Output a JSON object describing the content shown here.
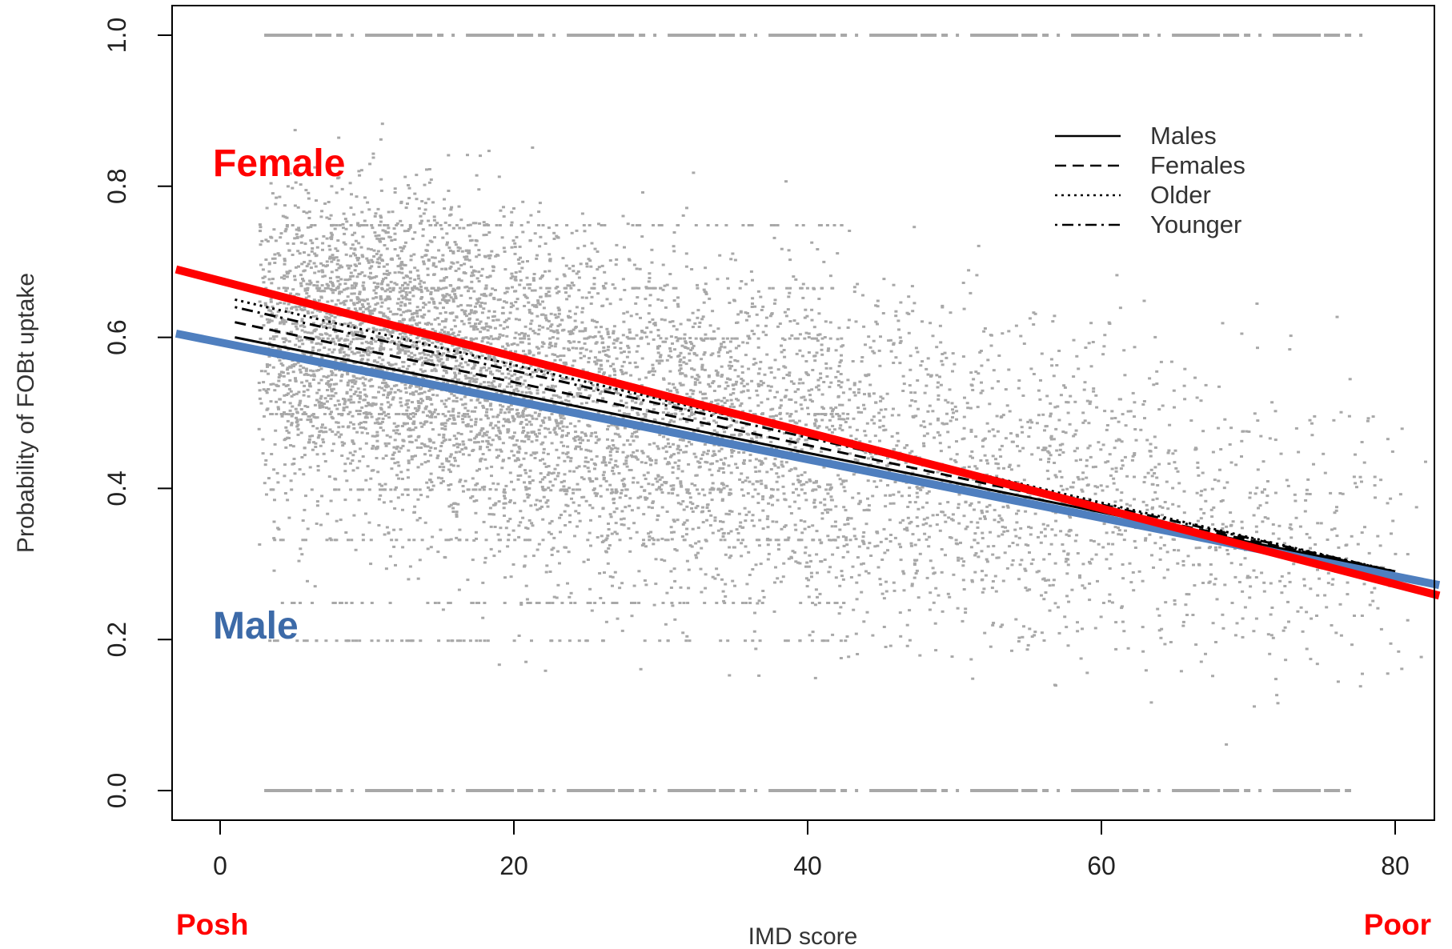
{
  "chart_data": {
    "type": "scatter",
    "xlabel": "IMD score",
    "ylabel": "Probability of FOBt uptake",
    "xlim": [
      -3,
      83
    ],
    "ylim": [
      -0.04,
      1.04
    ],
    "x_ticks": [
      0,
      20,
      40,
      60,
      80
    ],
    "y_ticks": [
      0.0,
      0.2,
      0.4,
      0.6,
      0.8,
      1.0
    ],
    "x_tick_labels": [
      "0",
      "20",
      "40",
      "60",
      "80"
    ],
    "y_tick_labels": [
      "0.0",
      "0.2",
      "0.4",
      "0.6",
      "0.8",
      "1.0"
    ],
    "grid": false,
    "legend_position": "top-right",
    "legend": [
      {
        "label": "Males",
        "style": "solid"
      },
      {
        "label": "Females",
        "style": "dashed"
      },
      {
        "label": "Older",
        "style": "dotted"
      },
      {
        "label": "Younger",
        "style": "dotdash"
      }
    ],
    "scatter_color": "#a8a8a8",
    "scatter_clusters": [
      {
        "x_center": 10,
        "x_spread": 7,
        "y_center": 0.62,
        "y_spread": 0.09,
        "count": 2400
      },
      {
        "x_center": 22,
        "x_spread": 10,
        "y_center": 0.52,
        "y_spread": 0.1,
        "count": 2200
      },
      {
        "x_center": 40,
        "x_spread": 12,
        "y_center": 0.45,
        "y_spread": 0.11,
        "count": 1800
      },
      {
        "x_center": 60,
        "x_spread": 10,
        "y_center": 0.37,
        "y_spread": 0.1,
        "count": 700
      },
      {
        "x_center": 74,
        "x_spread": 5,
        "y_center": 0.32,
        "y_spread": 0.1,
        "count": 160
      }
    ],
    "scatter_bands": [
      {
        "y": 1.0,
        "x_range": [
          3,
          78
        ]
      },
      {
        "y": 0.0,
        "x_range": [
          3,
          77
        ]
      }
    ],
    "fit_lines": [
      {
        "name": "Males",
        "style": "solid",
        "x": [
          1,
          80
        ],
        "y": [
          0.6,
          0.29
        ]
      },
      {
        "name": "Females",
        "style": "dashed",
        "x": [
          1,
          80
        ],
        "y": [
          0.62,
          0.29
        ]
      },
      {
        "name": "Older",
        "style": "dotted",
        "x": [
          1,
          80
        ],
        "y": [
          0.65,
          0.29
        ]
      },
      {
        "name": "Younger",
        "style": "dotdash",
        "x": [
          1,
          80
        ],
        "y": [
          0.64,
          0.29
        ]
      }
    ],
    "highlight_lines": [
      {
        "label": "Female",
        "color": "#ff0000",
        "x": [
          -3,
          83
        ],
        "y": [
          0.69,
          0.258
        ]
      },
      {
        "label": "Male",
        "color": "#4f7fbf",
        "x": [
          -3,
          83
        ],
        "y": [
          0.605,
          0.272
        ]
      }
    ],
    "annotations": {
      "female_label": "Female",
      "male_label": "Male",
      "posh_label": "Posh",
      "poor_label": "Poor"
    },
    "annotation_colors": {
      "female": "#ff0000",
      "male": "#3c6aa8",
      "extremes": "#ff0000"
    }
  }
}
